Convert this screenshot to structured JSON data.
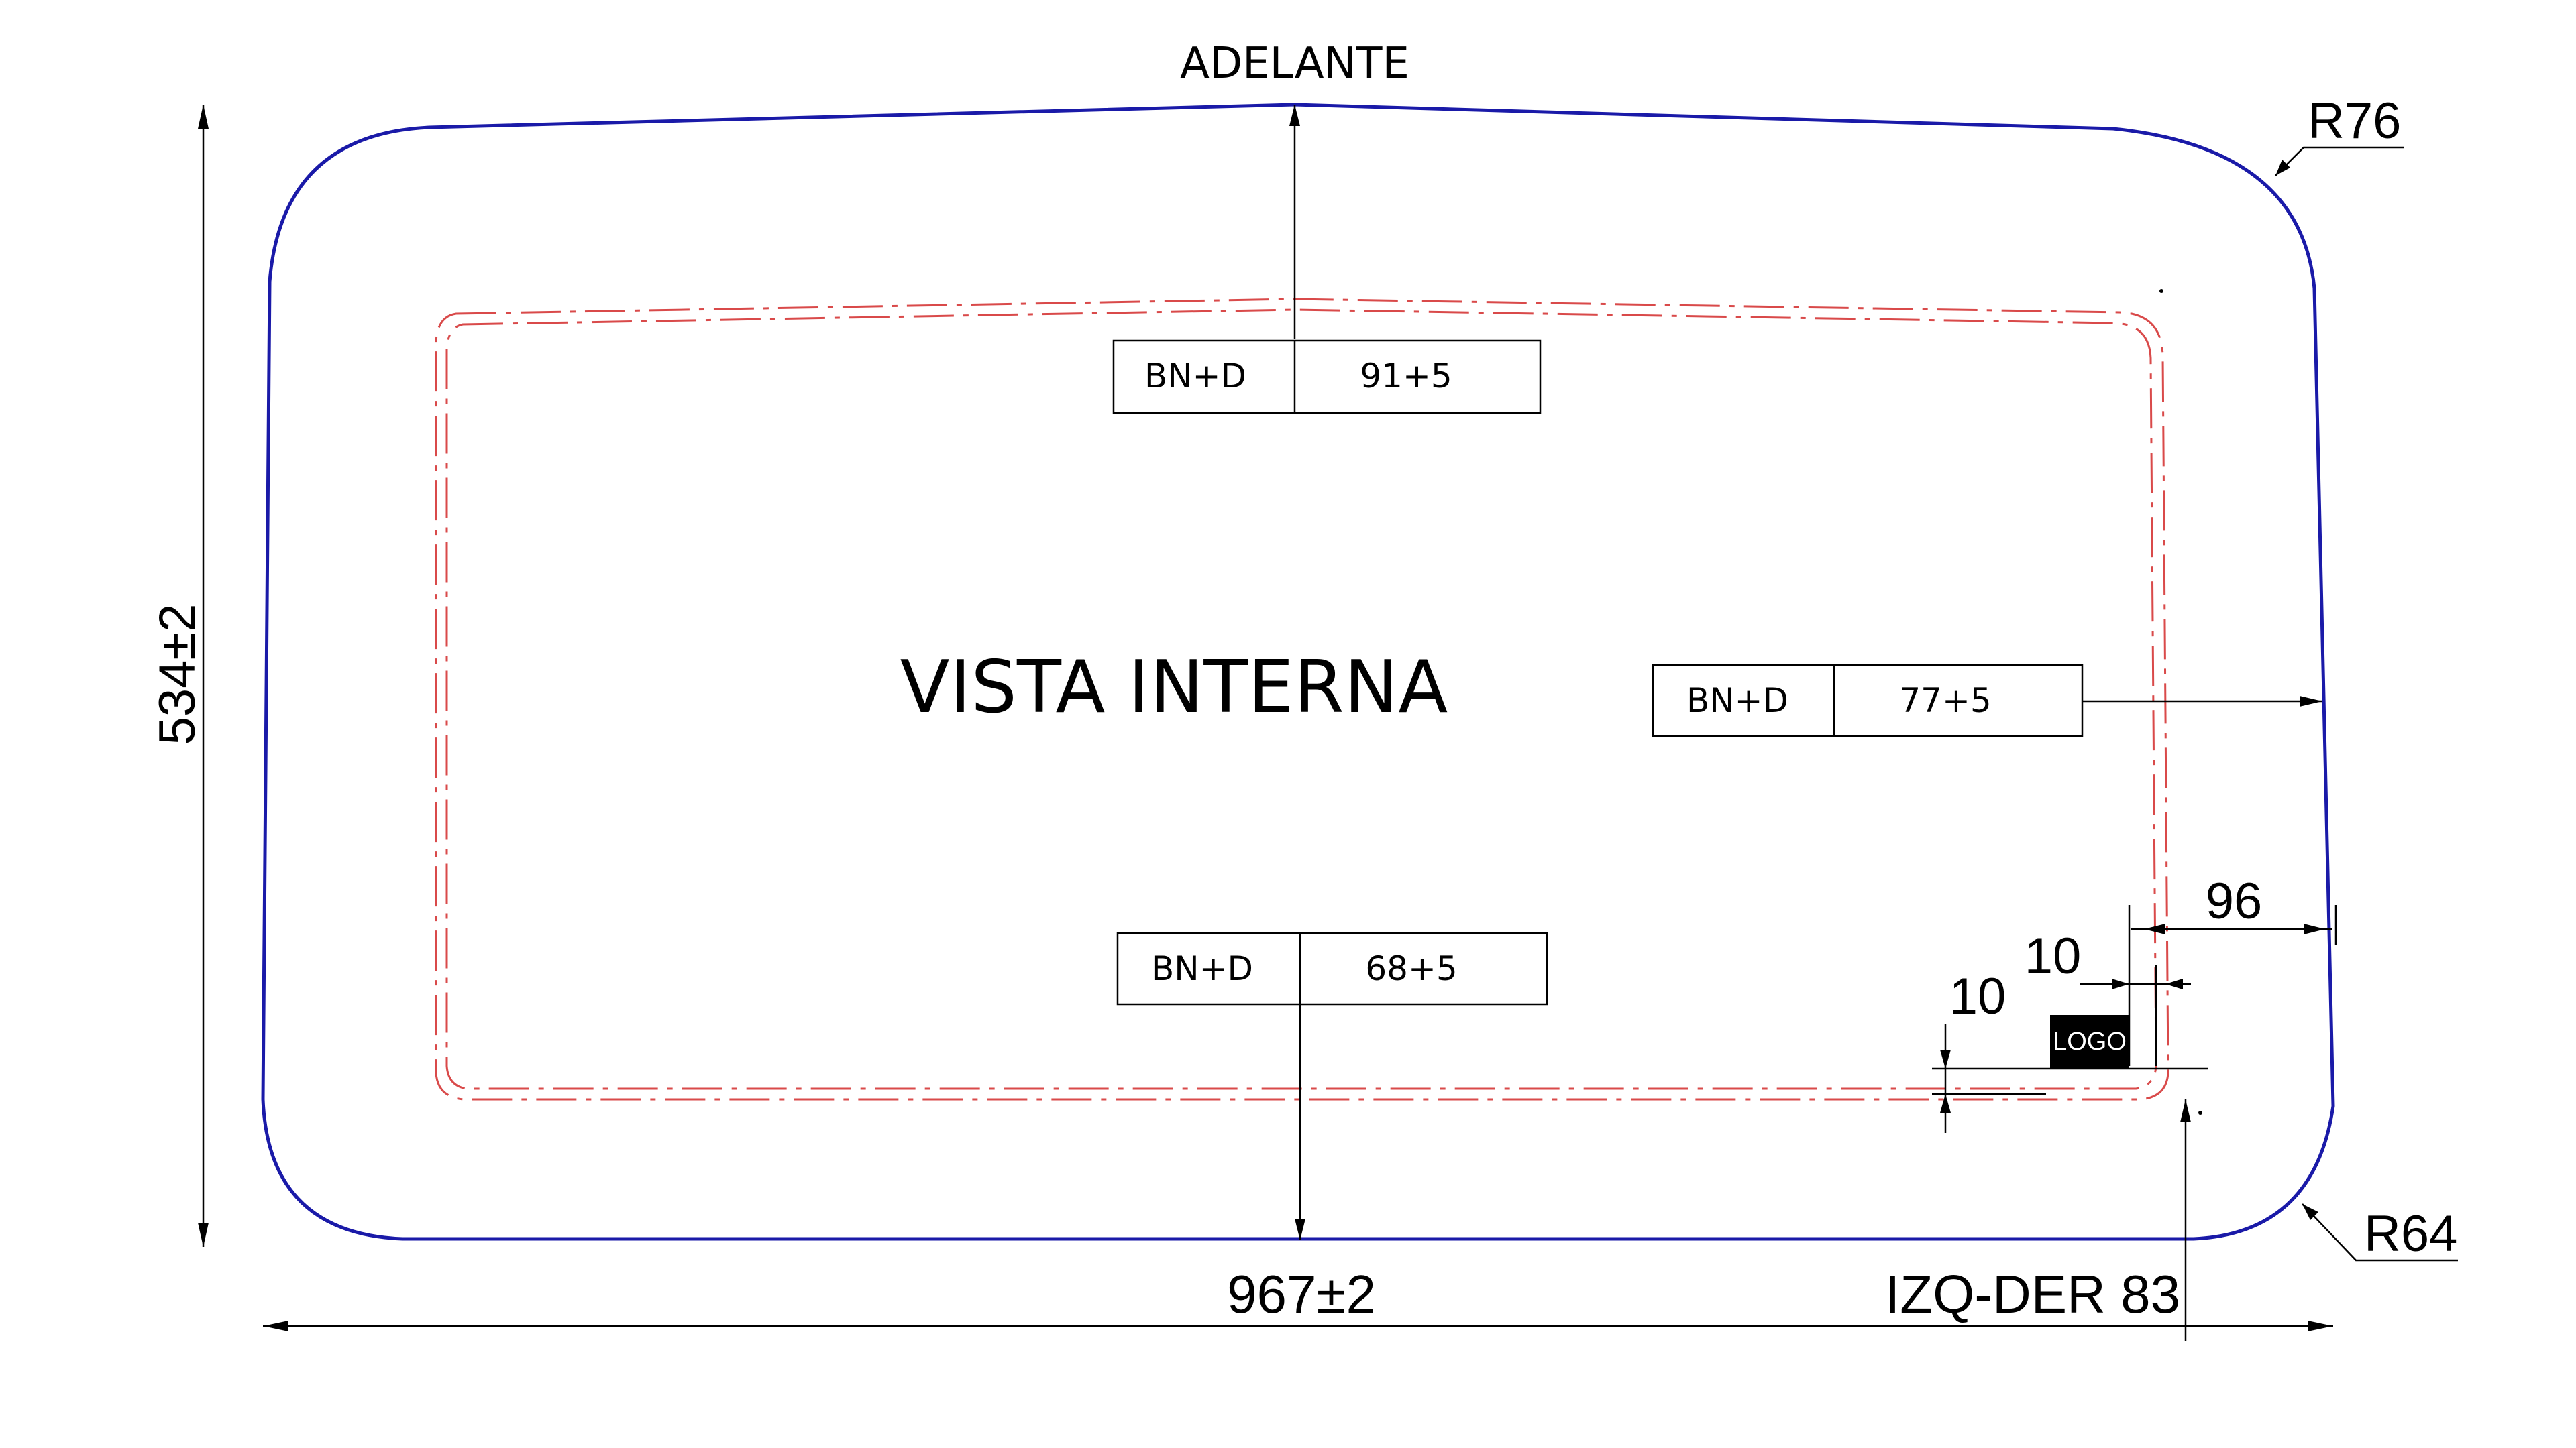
{
  "drawing": {
    "direction_label": "ADELANTE",
    "view_title": "VISTA INTERNA",
    "height_dim": "534±2",
    "width_dim": "967±2",
    "side_label": "IZQ-DER 83",
    "radius_top": "R76",
    "radius_bottom": "R64",
    "offset_right": "96",
    "logo_offset_x": "10",
    "logo_offset_y": "10",
    "logo_text": "LOGO",
    "boxes": {
      "top": {
        "code": "BN+D",
        "value": "91+5"
      },
      "right": {
        "code": "BN+D",
        "value": "77+5"
      },
      "bottom": {
        "code": "BN+D",
        "value": "68+5"
      }
    },
    "colors": {
      "outline": "#1a1aa8",
      "print_line": "#d94a4a",
      "dim_line": "#000000",
      "logo_bg": "#000000"
    }
  }
}
